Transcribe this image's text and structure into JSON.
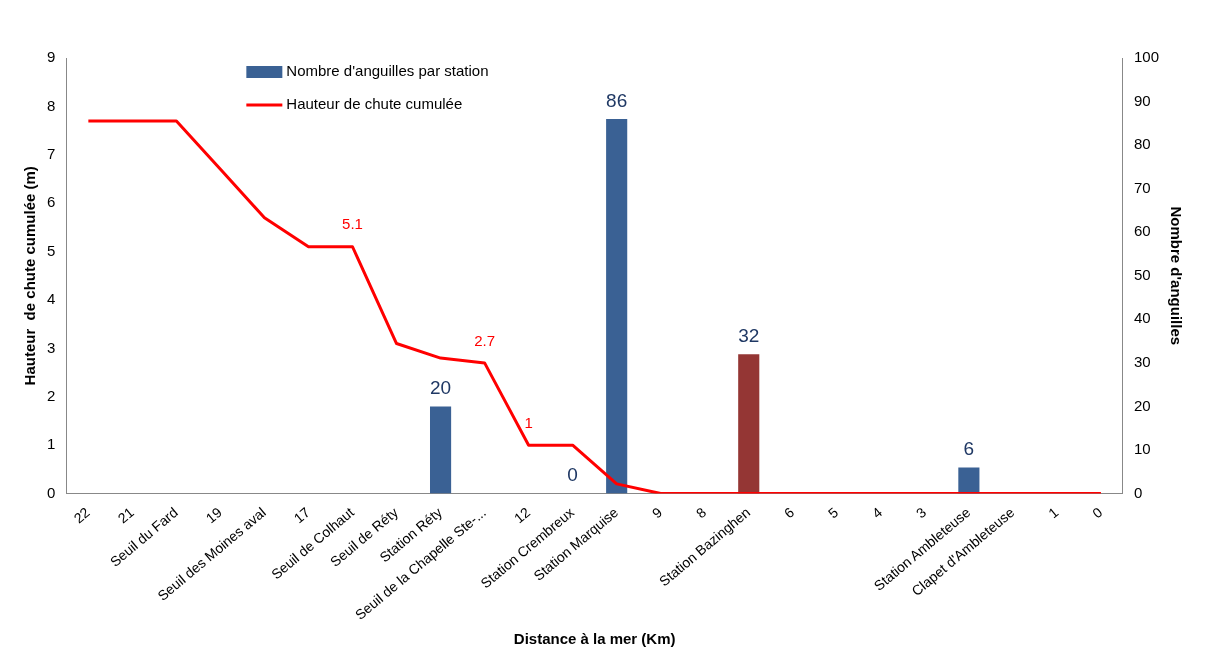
{
  "chart_data": {
    "type": "bar",
    "xlabel": "Distance à la mer (Km)",
    "ylabel": "Hauteur  de chute cumulée (m)",
    "y2label": "Nombre d'anguilles",
    "categories": [
      "22",
      "21",
      "Seuil du Fard",
      "19",
      "Seuil des Moines aval",
      "17",
      "Seuil de Colhaut",
      "Seuil de Réty",
      "Station Réty",
      "Seuil de la Chapelle Ste-...",
      "12",
      "Station Crembreux",
      "Station Marquise",
      "9",
      "8",
      "Station Bazinghen",
      "6",
      "5",
      "4",
      "3",
      "Station Ambleteuse",
      "Clapet d'Ambleteuse",
      "1",
      "0"
    ],
    "series": [
      {
        "name": "Nombre d'anguilles par station",
        "axis": "y2",
        "color": "#3a6194",
        "colors": [
          "#3a6194",
          "#3a6194",
          "#3a6194",
          "#3a6194",
          "#3a6194",
          "#3a6194",
          "#3a6194",
          "#3a6194",
          "#3a6194",
          "#3a6194",
          "#3a6194",
          "#3a6194",
          "#3a6194",
          "#3a6194",
          "#3a6194",
          "#943634",
          "#3a6194",
          "#3a6194",
          "#3a6194",
          "#3a6194",
          "#3a6194",
          "#3a6194",
          "#3a6194",
          "#3a6194"
        ],
        "values": [
          null,
          null,
          null,
          null,
          null,
          null,
          null,
          null,
          20,
          null,
          null,
          0,
          86,
          null,
          null,
          32,
          null,
          null,
          null,
          null,
          6,
          null,
          null,
          null
        ],
        "value_labels": [
          null,
          null,
          null,
          null,
          null,
          null,
          null,
          null,
          "20",
          null,
          null,
          "0",
          "86",
          null,
          null,
          "32",
          null,
          null,
          null,
          null,
          "6",
          null,
          null,
          null
        ]
      },
      {
        "name": "Hauteur de chute cumulée",
        "type": "line",
        "color": "#ff0000",
        "values": [
          7.7,
          7.7,
          7.7,
          6.7,
          5.7,
          5.1,
          5.1,
          3.1,
          2.8,
          2.7,
          1.0,
          1.0,
          0.2,
          0,
          0,
          0,
          0,
          0,
          0,
          0,
          0,
          0,
          0,
          0
        ],
        "value_labels": [
          null,
          null,
          null,
          null,
          null,
          null,
          "5.1",
          null,
          null,
          "2.7",
          "1",
          null,
          null,
          null,
          null,
          null,
          null,
          null,
          null,
          null,
          null,
          null,
          null,
          null
        ]
      }
    ],
    "ylim": [
      0,
      9
    ],
    "yticks": [
      0,
      1,
      2,
      3,
      4,
      5,
      6,
      7,
      8,
      9
    ],
    "y2lim": [
      0,
      100
    ],
    "y2ticks": [
      0,
      10,
      20,
      30,
      40,
      50,
      60,
      70,
      80,
      90,
      100
    ],
    "grid": false,
    "legend": "top left",
    "marker": "none"
  }
}
